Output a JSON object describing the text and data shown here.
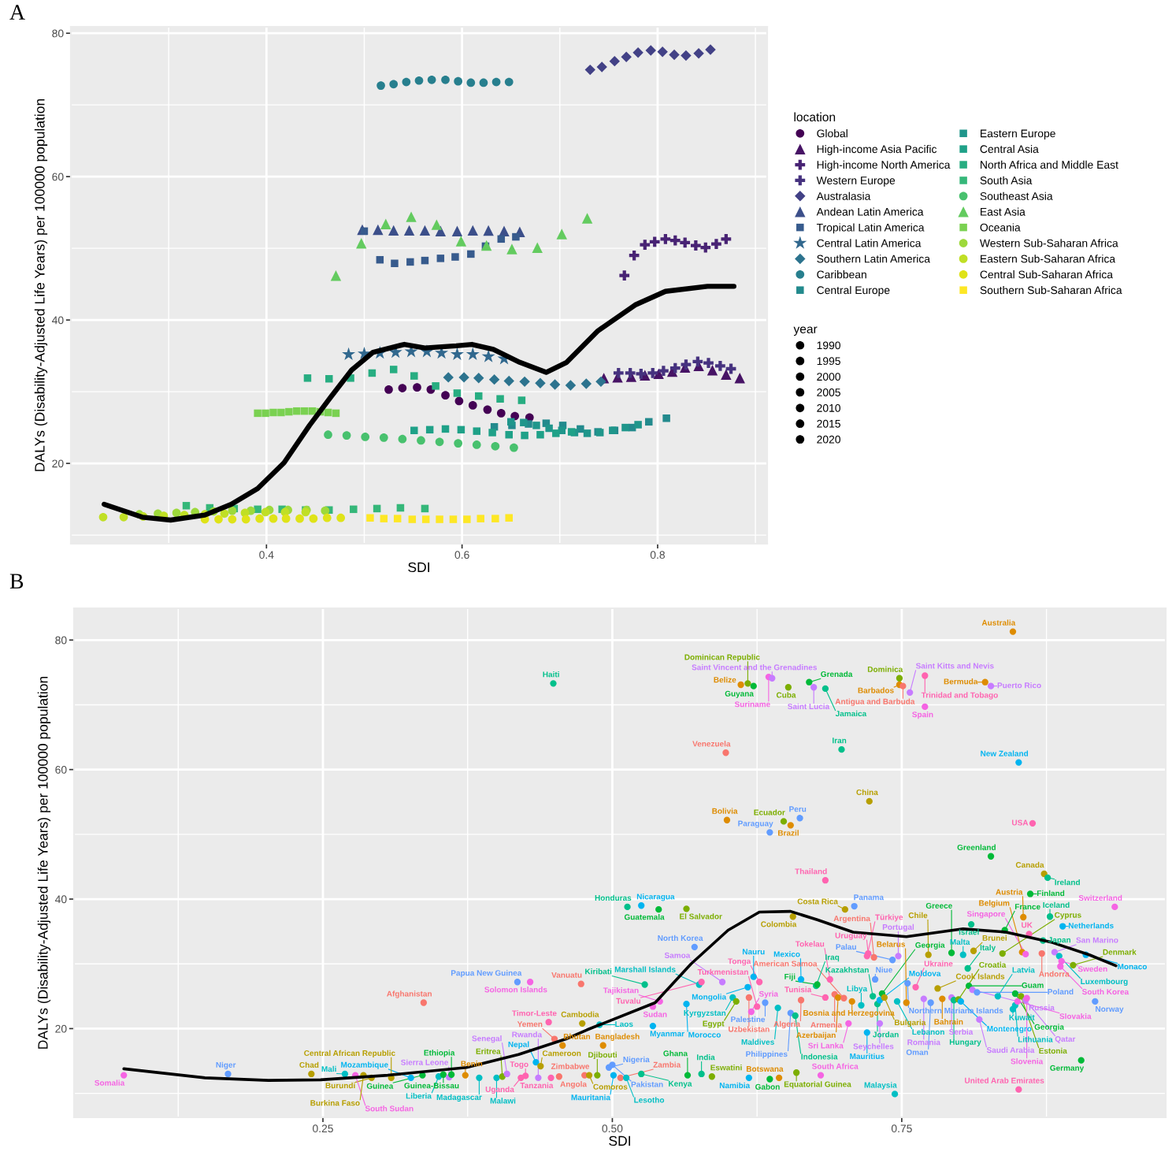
{
  "chart_data": [
    {
      "type": "bubble",
      "title": "A",
      "xlabel": "SDI",
      "ylabel": "DALYs (Disability-Adjusted Life Years) per 100000 population",
      "legend_title": "location",
      "annotations": [
        "year"
      ],
      "size_legend": [
        1990,
        1995,
        2000,
        2005,
        2010,
        2015,
        2020
      ],
      "xlim": [
        0.2,
        0.912
      ],
      "ylim": [
        8.8,
        80.9
      ],
      "xticks": [
        0.4,
        0.6,
        0.8
      ],
      "yticks": [
        20,
        40,
        60,
        80
      ],
      "grid": true,
      "legend": "right",
      "series": [
        {
          "name": "Global",
          "color": "#440154",
          "marker": "circle",
          "x": [
            0.525,
            0.539,
            0.554,
            0.568,
            0.583,
            0.597,
            0.611,
            0.626,
            0.64,
            0.654,
            0.669
          ],
          "values": [
            30.3,
            30.5,
            30.6,
            30.3,
            29.5,
            28.7,
            28.1,
            27.5,
            27.0,
            26.6,
            26.4
          ],
          "sizes": [
            1990,
            1993,
            1996,
            1999,
            2002,
            2005,
            2008,
            2011,
            2014,
            2017,
            2020
          ]
        },
        {
          "name": "High-income Asia Pacific",
          "color": "#471365",
          "marker": "triangle",
          "x": [
            0.745,
            0.759,
            0.773,
            0.787,
            0.801,
            0.815,
            0.828,
            0.842,
            0.856,
            0.87,
            0.884
          ],
          "values": [
            31.9,
            32.0,
            32.1,
            32.3,
            32.5,
            32.8,
            33.4,
            33.6,
            33.0,
            32.4,
            31.9
          ],
          "sizes": [
            1990,
            1993,
            1996,
            1999,
            2002,
            2005,
            2008,
            2011,
            2014,
            2017,
            2020
          ]
        },
        {
          "name": "High-income North America",
          "color": "#482374",
          "marker": "cross",
          "x": [
            0.766,
            0.776,
            0.787,
            0.797,
            0.808,
            0.818,
            0.828,
            0.839,
            0.849,
            0.86,
            0.87
          ],
          "values": [
            46.2,
            49.0,
            50.5,
            50.9,
            51.3,
            51.1,
            50.8,
            50.4,
            50.1,
            50.6,
            51.3
          ],
          "sizes": [
            1990,
            1993,
            1996,
            1999,
            2002,
            2005,
            2008,
            2011,
            2014,
            2017,
            2020
          ]
        },
        {
          "name": "Western Europe",
          "color": "#46327F",
          "marker": "cross",
          "x": [
            0.76,
            0.772,
            0.783,
            0.795,
            0.806,
            0.818,
            0.829,
            0.841,
            0.852,
            0.864,
            0.875
          ],
          "values": [
            32.6,
            32.6,
            32.5,
            32.6,
            32.9,
            33.3,
            33.8,
            34.2,
            34.0,
            33.6,
            33.2
          ],
          "sizes": [
            1990,
            1993,
            1996,
            1999,
            2002,
            2005,
            2008,
            2011,
            2014,
            2017,
            2020
          ]
        },
        {
          "name": "Australasia",
          "color": "#424186",
          "marker": "diamond",
          "x": [
            0.731,
            0.743,
            0.756,
            0.768,
            0.78,
            0.793,
            0.805,
            0.817,
            0.829,
            0.842,
            0.854
          ],
          "values": [
            74.9,
            75.3,
            76.1,
            76.7,
            77.3,
            77.6,
            77.4,
            77.0,
            76.9,
            77.2,
            77.7
          ],
          "sizes": [
            1990,
            1993,
            1996,
            1999,
            2002,
            2005,
            2008,
            2011,
            2014,
            2017,
            2020
          ]
        },
        {
          "name": "Andean Latin America",
          "color": "#3C4F8A",
          "marker": "triangle",
          "x": [
            0.498,
            0.514,
            0.53,
            0.546,
            0.562,
            0.578,
            0.595,
            0.611,
            0.627,
            0.643,
            0.659
          ],
          "values": [
            52.6,
            52.6,
            52.5,
            52.5,
            52.5,
            52.4,
            52.4,
            52.5,
            52.5,
            52.4,
            52.3
          ],
          "sizes": [
            1990,
            1993,
            1996,
            1999,
            2002,
            2005,
            2008,
            2011,
            2014,
            2017,
            2020
          ]
        },
        {
          "name": "Tropical Latin America",
          "color": "#375B8D",
          "marker": "square",
          "x": [
            0.5,
            0.516,
            0.531,
            0.547,
            0.562,
            0.578,
            0.593,
            0.609,
            0.624,
            0.64,
            0.655
          ],
          "values": [
            52.4,
            48.4,
            47.9,
            48.1,
            48.3,
            48.6,
            48.8,
            49.2,
            50.3,
            51.3,
            51.6
          ],
          "sizes": [
            1990,
            1993,
            1996,
            1999,
            2002,
            2005,
            2008,
            2011,
            2014,
            2017,
            2020
          ]
        },
        {
          "name": "Central Latin America",
          "color": "#31688E",
          "marker": "star",
          "x": [
            0.484,
            0.5,
            0.516,
            0.532,
            0.548,
            0.564,
            0.579,
            0.595,
            0.611,
            0.627,
            0.643
          ],
          "values": [
            35.2,
            35.3,
            35.4,
            35.5,
            35.6,
            35.6,
            35.4,
            35.2,
            35.2,
            34.9,
            34.6
          ],
          "sizes": [
            1990,
            1993,
            1996,
            1999,
            2002,
            2005,
            2008,
            2011,
            2014,
            2017,
            2020
          ]
        },
        {
          "name": "Southern Latin America",
          "color": "#2C738E",
          "marker": "diamond",
          "x": [
            0.586,
            0.602,
            0.617,
            0.633,
            0.648,
            0.664,
            0.68,
            0.695,
            0.711,
            0.727,
            0.742
          ],
          "values": [
            32.0,
            32.0,
            31.9,
            31.7,
            31.5,
            31.4,
            31.2,
            31.0,
            30.9,
            31.1,
            31.4
          ],
          "sizes": [
            1990,
            1993,
            1996,
            1999,
            2002,
            2005,
            2008,
            2011,
            2014,
            2017,
            2020
          ]
        },
        {
          "name": "Caribbean",
          "color": "#277F8E",
          "marker": "circle",
          "x": [
            0.517,
            0.53,
            0.543,
            0.556,
            0.569,
            0.583,
            0.596,
            0.609,
            0.622,
            0.635,
            0.648
          ],
          "values": [
            72.7,
            72.9,
            73.2,
            73.4,
            73.5,
            73.5,
            73.3,
            73.1,
            73.1,
            73.2,
            73.2
          ],
          "sizes": [
            1990,
            1993,
            1996,
            1999,
            2002,
            2005,
            2008,
            2011,
            2014,
            2017,
            2020
          ]
        },
        {
          "name": "Central Europe",
          "color": "#238A8D",
          "marker": "square",
          "x": [
            0.633,
            0.651,
            0.668,
            0.686,
            0.703,
            0.721,
            0.739,
            0.756,
            0.774,
            0.791,
            0.809
          ],
          "values": [
            25.1,
            25.3,
            25.5,
            25.6,
            25.3,
            24.8,
            24.4,
            24.6,
            25.0,
            25.8,
            26.3
          ],
          "sizes": [
            1990,
            1993,
            1996,
            1999,
            2002,
            2005,
            2008,
            2011,
            2014,
            2017,
            2020
          ]
        },
        {
          "name": "Eastern Europe",
          "color": "#1F968B",
          "marker": "square",
          "x": [
            0.65,
            0.663,
            0.676,
            0.689,
            0.702,
            0.715,
            0.728,
            0.741,
            0.754,
            0.767,
            0.78
          ],
          "values": [
            25.8,
            25.7,
            25.3,
            24.9,
            24.6,
            24.3,
            24.2,
            24.3,
            24.6,
            25.0,
            25.4
          ],
          "sizes": [
            1990,
            1993,
            1996,
            1999,
            2002,
            2005,
            2008,
            2011,
            2014,
            2017,
            2020
          ]
        },
        {
          "name": "Central Asia",
          "color": "#1FA188",
          "marker": "square",
          "x": [
            0.551,
            0.567,
            0.583,
            0.599,
            0.615,
            0.631,
            0.648,
            0.664,
            0.68,
            0.696,
            0.712
          ],
          "values": [
            24.6,
            24.7,
            24.8,
            24.7,
            24.5,
            24.3,
            24.0,
            23.9,
            24.0,
            24.2,
            24.4
          ],
          "sizes": [
            1990,
            1993,
            1996,
            1999,
            2002,
            2005,
            2008,
            2011,
            2014,
            2017,
            2020
          ]
        },
        {
          "name": "North Africa and Middle East",
          "color": "#27AD81",
          "marker": "square",
          "x": [
            0.442,
            0.464,
            0.486,
            0.508,
            0.53,
            0.551,
            0.573,
            0.595,
            0.617,
            0.639,
            0.661
          ],
          "values": [
            31.9,
            31.8,
            31.9,
            32.6,
            33.1,
            32.2,
            30.8,
            29.8,
            29.4,
            29.0,
            28.8
          ],
          "sizes": [
            1990,
            1993,
            1996,
            1999,
            2002,
            2005,
            2008,
            2011,
            2014,
            2017,
            2020
          ]
        },
        {
          "name": "South Asia",
          "color": "#35B779",
          "marker": "square",
          "x": [
            0.318,
            0.342,
            0.367,
            0.391,
            0.416,
            0.44,
            0.464,
            0.489,
            0.513,
            0.537,
            0.562
          ],
          "values": [
            14.1,
            13.8,
            13.7,
            13.6,
            13.6,
            13.5,
            13.5,
            13.6,
            13.7,
            13.8,
            13.7
          ],
          "sizes": [
            1990,
            1993,
            1996,
            1999,
            2002,
            2005,
            2008,
            2011,
            2014,
            2017,
            2020
          ]
        },
        {
          "name": "Southeast Asia",
          "color": "#48C16E",
          "marker": "circle",
          "x": [
            0.463,
            0.482,
            0.501,
            0.52,
            0.539,
            0.558,
            0.577,
            0.596,
            0.615,
            0.634,
            0.653
          ],
          "values": [
            24.0,
            23.9,
            23.7,
            23.6,
            23.4,
            23.2,
            23.0,
            22.8,
            22.6,
            22.4,
            22.2
          ],
          "sizes": [
            1990,
            1993,
            1996,
            1999,
            2002,
            2005,
            2008,
            2011,
            2014,
            2017,
            2020
          ]
        },
        {
          "name": "East Asia",
          "color": "#63CB5F",
          "marker": "triangle",
          "x": [
            0.471,
            0.497,
            0.522,
            0.548,
            0.574,
            0.599,
            0.625,
            0.651,
            0.677,
            0.702,
            0.728
          ],
          "values": [
            46.2,
            50.7,
            53.4,
            54.4,
            53.3,
            51.0,
            50.4,
            49.9,
            50.1,
            52.0,
            54.2
          ],
          "sizes": [
            1990,
            1993,
            1996,
            1999,
            2002,
            2005,
            2008,
            2011,
            2014,
            2017,
            2020
          ]
        },
        {
          "name": "Oceania",
          "color": "#7AD151",
          "marker": "square",
          "x": [
            0.391,
            0.399,
            0.407,
            0.415,
            0.423,
            0.431,
            0.439,
            0.447,
            0.455,
            0.463,
            0.471
          ],
          "values": [
            27.0,
            27.0,
            27.1,
            27.1,
            27.2,
            27.3,
            27.3,
            27.3,
            27.2,
            27.1,
            27.0
          ],
          "sizes": [
            1990,
            1993,
            1996,
            1999,
            2002,
            2005,
            2008,
            2011,
            2014,
            2017,
            2020
          ]
        },
        {
          "name": "Western Sub-Saharan Africa",
          "color": "#9DD93B",
          "marker": "circle",
          "x": [
            0.27,
            0.289,
            0.308,
            0.327,
            0.346,
            0.365,
            0.384,
            0.403,
            0.422,
            0.441,
            0.46
          ],
          "values": [
            12.9,
            13.0,
            13.1,
            13.2,
            13.3,
            13.4,
            13.4,
            13.5,
            13.5,
            13.5,
            13.4
          ],
          "sizes": [
            1990,
            1993,
            1996,
            1999,
            2002,
            2005,
            2008,
            2011,
            2014,
            2017,
            2020
          ]
        },
        {
          "name": "Eastern Sub-Saharan Africa",
          "color": "#C0DF25",
          "marker": "circle",
          "x": [
            0.233,
            0.254,
            0.274,
            0.295,
            0.316,
            0.337,
            0.357,
            0.378,
            0.399,
            0.419,
            0.44
          ],
          "values": [
            12.5,
            12.5,
            12.6,
            12.7,
            12.8,
            12.9,
            13.0,
            13.1,
            13.2,
            13.2,
            13.2
          ],
          "sizes": [
            1990,
            1993,
            1996,
            1999,
            2002,
            2005,
            2008,
            2011,
            2014,
            2017,
            2020
          ]
        },
        {
          "name": "Central Sub-Saharan Africa",
          "color": "#DFE318",
          "marker": "circle",
          "x": [
            0.337,
            0.351,
            0.365,
            0.379,
            0.393,
            0.407,
            0.42,
            0.434,
            0.448,
            0.462,
            0.476
          ],
          "values": [
            12.2,
            12.2,
            12.2,
            12.2,
            12.3,
            12.3,
            12.3,
            12.3,
            12.3,
            12.4,
            12.4
          ],
          "sizes": [
            1990,
            1993,
            1996,
            1999,
            2002,
            2005,
            2008,
            2011,
            2014,
            2017,
            2020
          ]
        },
        {
          "name": "Southern Sub-Saharan Africa",
          "color": "#FDE725",
          "marker": "square",
          "x": [
            0.506,
            0.52,
            0.534,
            0.549,
            0.563,
            0.577,
            0.591,
            0.605,
            0.619,
            0.634,
            0.648
          ],
          "values": [
            12.4,
            12.3,
            12.3,
            12.2,
            12.2,
            12.2,
            12.2,
            12.2,
            12.3,
            12.3,
            12.4
          ],
          "sizes": [
            1990,
            1993,
            1996,
            1999,
            2002,
            2005,
            2008,
            2011,
            2014,
            2017,
            2020
          ]
        },
        {
          "type": "line",
          "color": "#000000",
          "x": [
            0.234,
            0.273,
            0.302,
            0.337,
            0.364,
            0.391,
            0.418,
            0.444,
            0.466,
            0.487,
            0.509,
            0.541,
            0.562,
            0.594,
            0.61,
            0.632,
            0.659,
            0.686,
            0.707,
            0.739,
            0.777,
            0.808,
            0.851,
            0.878
          ],
          "values": [
            14.3,
            12.5,
            12.1,
            12.8,
            14.3,
            16.5,
            20.1,
            25.3,
            29.3,
            33.0,
            35.5,
            36.6,
            36.1,
            36.4,
            36.6,
            35.9,
            34.1,
            32.7,
            34.1,
            38.5,
            42.1,
            44.0,
            44.7,
            44.7
          ]
        }
      ]
    },
    {
      "type": "scatter",
      "title": "B",
      "xlabel": "SDI",
      "ylabel": "DALYs (Disability-Adjusted Life Years) per 100000 population",
      "xlim": [
        0.035,
        0.978
      ],
      "ylim": [
        6.3,
        84.9
      ],
      "xticks": [
        0.25,
        {
          "value": 0.5,
          "label": "0.50"
        },
        0.75
      ],
      "yticks": [
        20,
        40,
        60,
        80
      ],
      "grid": true,
      "series": [
        {
          "marker": "circle",
          "x": [
            0.078,
            0.168,
            0.24,
            0.269,
            0.278,
            0.285,
            0.292,
            0.309,
            0.326,
            0.336,
            0.337,
            0.35,
            0.354,
            0.359,
            0.361,
            0.373,
            0.385,
            0.4,
            0.405,
            0.409,
            0.418,
            0.421,
            0.425,
            0.429,
            0.434,
            0.436,
            0.438,
            0.445,
            0.447,
            0.449,
            0.45,
            0.454,
            0.457,
            0.473,
            0.474,
            0.476,
            0.48,
            0.487,
            0.489,
            0.492,
            0.497,
            0.5,
            0.501,
            0.507,
            0.512,
            0.513,
            0.525,
            0.525,
            0.528,
            0.535,
            0.535,
            0.54,
            0.541,
            0.564,
            0.564,
            0.565,
            0.571,
            0.575,
            0.577,
            0.577,
            0.586,
            0.595,
            0.598,
            0.599,
            0.604,
            0.607,
            0.611,
            0.617,
            0.617,
            0.618,
            0.618,
            0.62,
            0.622,
            0.622,
            0.625,
            0.627,
            0.632,
            0.635,
            0.636,
            0.636,
            0.638,
            0.643,
            0.644,
            0.648,
            0.652,
            0.654,
            0.654,
            0.656,
            0.658,
            0.659,
            0.662,
            0.663,
            0.663,
            0.67,
            0.674,
            0.676,
            0.677,
            0.68,
            0.684,
            0.684,
            0.684,
            0.688,
            0.692,
            0.695,
            0.698,
            0.7,
            0.701,
            0.704,
            0.707,
            0.709,
            0.715,
            0.72,
            0.72,
            0.721,
            0.722,
            0.725,
            0.726,
            0.727,
            0.729,
            0.731,
            0.731,
            0.733,
            0.735,
            0.742,
            0.744,
            0.746,
            0.747,
            0.748,
            0.748,
            0.751,
            0.754,
            0.755,
            0.757,
            0.762,
            0.769,
            0.77,
            0.77,
            0.773,
            0.775,
            0.781,
            0.785,
            0.793,
            0.793,
            0.795,
            0.799,
            0.801,
            0.803,
            0.807,
            0.808,
            0.81,
            0.811,
            0.812,
            0.815,
            0.817,
            0.822,
            0.827,
            0.827,
            0.833,
            0.837,
            0.839,
            0.846,
            0.846,
            0.848,
            0.848,
            0.85,
            0.851,
            0.851,
            0.853,
            0.854,
            0.855,
            0.857,
            0.857,
            0.858,
            0.86,
            0.861,
            0.863,
            0.871,
            0.872,
            0.873,
            0.876,
            0.878,
            0.882,
            0.886,
            0.887,
            0.888,
            0.889,
            0.898,
            0.905,
            0.909,
            0.917,
            0.934
          ],
          "values": [
            12.8,
            13.0,
            13.0,
            13.0,
            12.8,
            12.8,
            12.4,
            12.4,
            12.4,
            12.8,
            24.0,
            12.6,
            12.9,
            12.5,
            12.9,
            12.8,
            12.4,
            12.4,
            12.6,
            13.0,
            27.2,
            12.4,
            12.7,
            27.2,
            14.8,
            12.4,
            14.2,
            21.0,
            12.4,
            73.3,
            18.4,
            12.6,
            17.4,
            26.9,
            20.8,
            12.8,
            12.8,
            12.8,
            20.6,
            17.4,
            14.0,
            14.4,
            12.8,
            12.4,
            12.4,
            38.8,
            13.0,
            39.0,
            26.8,
            20.4,
            23.4,
            38.4,
            24.2,
            23.8,
            38.5,
            12.8,
            32.6,
            26.8,
            13.0,
            27.2,
            12.6,
            27.2,
            62.6,
            52.2,
            24.8,
            24.2,
            73.1,
            26.4,
            73.3,
            12.4,
            24.8,
            22.6,
            72.9,
            28.0,
            23.4,
            27.2,
            24.0,
            74.3,
            50.3,
            12.2,
            74.1,
            23.2,
            12.4,
            52.0,
            72.7,
            51.4,
            22.4,
            37.3,
            22.0,
            13.2,
            52.5,
            24.4,
            27.6,
            73.5,
            72.7,
            26.6,
            26.8,
            12.8,
            42.9,
            24.8,
            72.5,
            27.6,
            25.3,
            24.8,
            63.1,
            24.7,
            38.4,
            20.8,
            24.2,
            38.9,
            23.6,
            31.2,
            19.4,
            31.6,
            55.1,
            25.0,
            31.0,
            27.6,
            23.8,
            20.8,
            24.4,
            25.4,
            24.8,
            30.6,
            9.9,
            24.2,
            31.2,
            74.1,
            73.1,
            72.9,
            24.0,
            27.0,
            71.9,
            26.4,
            24.6,
            69.7,
            74.5,
            31.4,
            24.0,
            26.2,
            24.6,
            31.7,
            24.8,
            24.4,
            24.5,
            24.2,
            31.4,
            29.3,
            26.6,
            36.1,
            26.0,
            32.0,
            25.6,
            21.4,
            73.5,
            72.9,
            46.6,
            25.0,
            31.6,
            35.2,
            81.3,
            23.0,
            23.6,
            25.4,
            24.2,
            61.1,
            10.6,
            25.0,
            31.8,
            37.2,
            31.5,
            24.4,
            24.7,
            34.6,
            40.8,
            51.7,
            31.6,
            33.6,
            43.9,
            43.3,
            37.3,
            31.8,
            31.2,
            29.6,
            30.4,
            35.8,
            29.8,
            15.1,
            31.4,
            24.2,
            38.8
          ],
          "colors": [
            "#F564E3",
            "#619CFF",
            "#B79F00",
            "#00BFC4",
            "#F564E3",
            "#B79F00",
            "#B79F00",
            "#B79F00",
            "#00B4F0",
            "#00BA38",
            "#F8766D",
            "#00BFC4",
            "#00BA38",
            "#C77CFF",
            "#00BA38",
            "#DE8C00",
            "#00BFC4",
            "#00BFC4",
            "#7CAE00",
            "#C77CFF",
            "#619CFF",
            "#FF64B0",
            "#FF64B0",
            "#F564E3",
            "#00B4F0",
            "#C77CFF",
            "#B79F00",
            "#FF64B0",
            "#FF64B0",
            "#00C08B",
            "#F8766D",
            "#F8766D",
            "#DE8C00",
            "#F8766D",
            "#B79F00",
            "#F8766D",
            "#B79F00",
            "#7CAE00",
            "#00BFC4",
            "#DE8C00",
            "#619CFF",
            "#619CFF",
            "#00B4F0",
            "#F8766D",
            "#00BFC4",
            "#00C08B",
            "#00C08B",
            "#00B4F0",
            "#00C08B",
            "#00B4F0",
            "#F564E3",
            "#00BA38",
            "#F564E3",
            "#00B4F0",
            "#7CAE00",
            "#00BA38",
            "#619CFF",
            "#00BFC4",
            "#00C08B",
            "#FF64B0",
            "#7CAE00",
            "#C77CFF",
            "#F8766D",
            "#DE8C00",
            "#00BFC4",
            "#7CAE00",
            "#DE8C00",
            "#00B4F0",
            "#7CAE00",
            "#00B4F0",
            "#F8766D",
            "#F564E3",
            "#00BA38",
            "#00B4F0",
            "#FF64B0",
            "#FF64B0",
            "#619CFF",
            "#F564E3",
            "#619CFF",
            "#00BA38",
            "#C77CFF",
            "#00BFC4",
            "#DE8C00",
            "#7CAE00",
            "#7CAE00",
            "#DE8C00",
            "#619CFF",
            "#B79F00",
            "#00C08B",
            "#7CAE00",
            "#619CFF",
            "#F8766D",
            "#00B4F0",
            "#00BA38",
            "#C77CFF",
            "#00C08B",
            "#00BA38",
            "#F564E3",
            "#FF64B0",
            "#FF64B0",
            "#00C08B",
            "#FF64B0",
            "#F8766D",
            "#DE8C00",
            "#00C08B",
            "#F8766D",
            "#B79F00",
            "#F564E3",
            "#DE8C00",
            "#619CFF",
            "#00BFC4",
            "#FF64B0",
            "#00B4F0",
            "#FF64B0",
            "#B79F00",
            "#00C08B",
            "#F8766D",
            "#619CFF",
            "#00C08B",
            "#C77CFF",
            "#00B4F0",
            "#00BA38",
            "#B79F00",
            "#619CFF",
            "#00BFC4",
            "#00BFC4",
            "#C77CFF",
            "#7CAE00",
            "#DE8C00",
            "#F8766D",
            "#DE8C00",
            "#619CFF",
            "#C77CFF",
            "#FF64B0",
            "#C77CFF",
            "#F564E3",
            "#FF64B0",
            "#B79F00",
            "#619CFF",
            "#B79F00",
            "#DE8C00",
            "#00BA38",
            "#C77CFF",
            "#00C08B",
            "#7CAE00",
            "#00B4F0",
            "#00BFC4",
            "#00C08B",
            "#00BA38",
            "#00C08B",
            "#C77CFF",
            "#B79F00",
            "#619CFF",
            "#C77CFF",
            "#DE8C00",
            "#C77CFF",
            "#00BA38",
            "#00BFC4",
            "#7CAE00",
            "#00BA38",
            "#DE8C00",
            "#00BFC4",
            "#00BFC4",
            "#00BA38",
            "#F564E3",
            "#00B4F0",
            "#FF64B0",
            "#7CAE00",
            "#DE8C00",
            "#DE8C00",
            "#F564E3",
            "#C77CFF",
            "#F564E3",
            "#FF64B0",
            "#00BA38",
            "#FF64B0",
            "#F8766D",
            "#00C08B",
            "#B79F00",
            "#00C08B",
            "#00C08B",
            "#C77CFF",
            "#00BFC4",
            "#F564E3",
            "#F564E3",
            "#00B4F0",
            "#7CAE00",
            "#00BA38",
            "#00B4F0",
            "#619CFF",
            "#F564E3"
          ],
          "value_labels": [
            "Somalia",
            "Niger",
            "Chad",
            "Mali",
            "South Sudan",
            "Burkina Faso",
            "Burundi",
            "Central African Republic",
            "Mozambique",
            "Guinea",
            "Afghanistan",
            "Liberia",
            "Guinea-Bissau",
            "Sierra Leone",
            "Ethiopia",
            "Benin",
            "Madagascar",
            "Malawi",
            "Eritrea",
            "Senegal",
            "Papua New Guinea",
            "Uganda",
            "Togo",
            "Solomon Islands",
            "Nepal",
            "Rwanda",
            "Cameroon",
            "Timor-Leste",
            "Tanzania",
            "Haiti",
            "Yemen",
            "Angola",
            "Bhutan",
            "Vanuatu",
            "Cambodia",
            "Zimbabwe",
            "Comoros",
            "Djibouti",
            "Laos",
            "Bangladesh",
            "Nigeria",
            "Pakistan",
            "Mauritania",
            "Zambia",
            "Lesotho",
            "Honduras",
            "Kenya",
            "Nicaragua",
            "Kiribati",
            "Myanmar",
            "Sudan",
            "Guatemala",
            "Tajikistan",
            "Morocco",
            "El Salvador",
            "Ghana",
            "North Korea",
            "Marshall Islands",
            "India",
            "Tuvalu",
            "Eswatini",
            "Samoa",
            "Venezuela",
            "Bolivia",
            "Kyrgyzstan",
            "Egypt",
            "Belize",
            "Mongolia",
            "Dominican Republic",
            "Namibia",
            "Uzbekistan",
            "Syria",
            "Guyana",
            "Nauru",
            "Turkmenistan",
            "Tonga",
            "Palestine",
            "Suriname",
            "Paraguay",
            "Gabon",
            "Saint Vincent and the Grenadines",
            "Maldives",
            "Botswana",
            "Ecuador",
            "Cuba",
            "Brazil",
            "Philippines",
            "Colombia",
            "Indonesia",
            "Equatorial Guinea",
            "Peru",
            "Algeria",
            "Mexico",
            "Grenada",
            "Saint Lucia",
            "Iraq",
            "Fiji",
            "South Africa",
            "Thailand",
            "Tunisia",
            "Jamaica",
            "Tokelau",
            "Armenia",
            "Azerbaijan",
            "Iran",
            "American Samoa",
            "Costa Rica",
            "Sri Lanka",
            "Bosnia and Herzegovina",
            "Panama",
            "Libya",
            "Türkiye",
            "Mauritius",
            "Uruguay",
            "China",
            "Kazakhstan",
            "Argentina",
            "Niue",
            "Jordan",
            "Seychelles",
            "Moldova",
            "Georgia",
            "Bulgaria",
            "Palau",
            "Malaysia",
            "Lebanon",
            "Portugal",
            "Dominica",
            "Barbados",
            "Antigua and Barbuda",
            "Belarus",
            "Northern Mariana Islands",
            "Saint Kitts and Nevis",
            "Ukraine",
            "Romania",
            "Spain",
            "Trinidad and Tobago",
            "Chile",
            "Oman",
            "Cook Islands",
            "Bahrain",
            "Greece",
            "Serbia",
            "Hungary",
            "Croatia",
            "Montenegro",
            "Malta",
            "Italy",
            "Guam",
            "Israel",
            "Russia",
            "Brunei",
            "Poland",
            "Saudi Arabia",
            "Bermuda",
            "Puerto Rico",
            "Greenland",
            "Latvia",
            "Cyprus",
            "France",
            "Australia",
            "Kuwait",
            "Lithuania",
            "Georgia",
            "Slovakia",
            "New Zealand",
            "United Arab Emirates",
            "Estonia",
            "Belgium",
            "Austria",
            "Singapore",
            "Qatar",
            "Slovenia",
            "UK",
            "Finland",
            "USA",
            "Andorra",
            "Japan",
            "Canada",
            "Ireland",
            "Iceland",
            "San Marino",
            "Luxembourg",
            "South Korea",
            "Sweden",
            "Netherlands",
            "Denmark",
            "Germany",
            "Monaco",
            "Norway",
            "Switzerland"
          ]
        },
        {
          "type": "line",
          "color": "#000000",
          "x": [
            0.078,
            0.148,
            0.203,
            0.248,
            0.306,
            0.374,
            0.419,
            0.46,
            0.478,
            0.537,
            0.568,
            0.6,
            0.627,
            0.654,
            0.677,
            0.708,
            0.754,
            0.803,
            0.84,
            0.88,
            0.912,
            0.935
          ],
          "values": [
            13.8,
            12.4,
            12.0,
            12.1,
            12.8,
            14.0,
            16.0,
            18.4,
            19.8,
            24.0,
            30.0,
            35.2,
            38.0,
            38.1,
            36.8,
            34.9,
            34.2,
            35.4,
            34.9,
            33.3,
            31.4,
            29.7
          ]
        }
      ]
    }
  ]
}
